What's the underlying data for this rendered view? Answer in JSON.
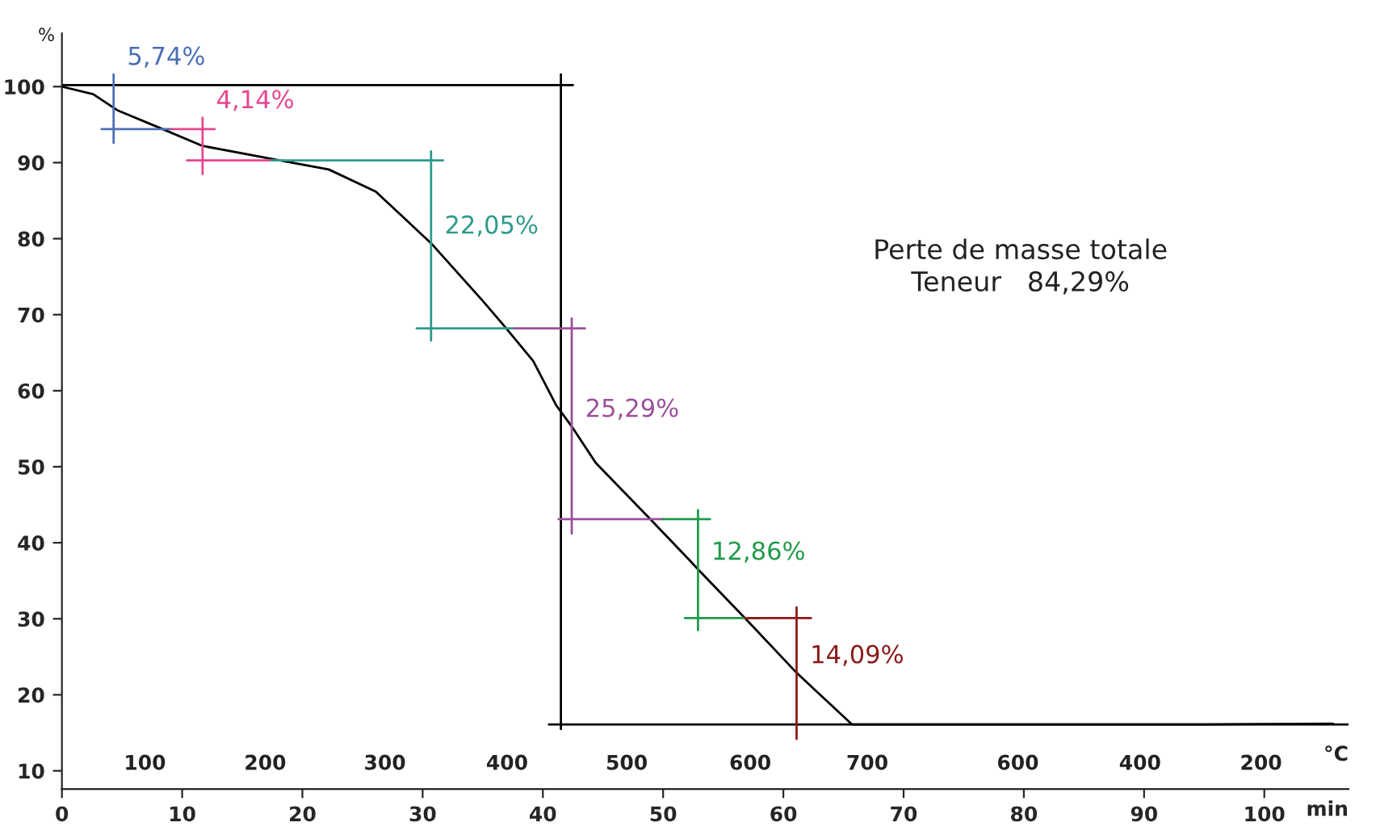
{
  "chart_data": {
    "type": "line",
    "ylabel": "%",
    "xlabel": "min",
    "xlim": [
      0,
      107
    ],
    "ylim": [
      7.6,
      107
    ],
    "xticks": [
      0,
      10,
      20,
      30,
      40,
      50,
      60,
      70,
      80,
      90,
      100
    ],
    "yticks": [
      10,
      20,
      30,
      40,
      50,
      60,
      70,
      80,
      90,
      100
    ],
    "grid": false,
    "marker": "none",
    "line_style": "solid",
    "series": [
      {
        "color": "#000000",
        "x": [
          0,
          2.6,
          4.6,
          8.1,
          11.7,
          17.4,
          22.2,
          26.1,
          30.7,
          34.9,
          36.8,
          39.2,
          41.1,
          42.4,
          44.4,
          48.7,
          52.2,
          52.9,
          56.8,
          61.1,
          65.7,
          80,
          95,
          105.7
        ],
        "values": [
          100,
          99,
          96.9,
          94.6,
          92.2,
          90.5,
          89.1,
          86.2,
          79.4,
          72,
          68.5,
          63.9,
          58.1,
          55.3,
          50.5,
          43.5,
          37.7,
          36.5,
          30.1,
          22.9,
          16.1,
          16.1,
          16.1,
          16.2
        ]
      },
      {
        "color": "#000000",
        "x": [
          0,
          42.5,
          null,
          41.5,
          41.5,
          null,
          40.5,
          107
        ],
        "values": [
          100.2,
          100.2,
          null,
          101.6,
          15.5,
          null,
          16.1,
          16.1
        ]
      },
      {
        "color": "#4a6fb5",
        "x": [
          4.3,
          4.3,
          null,
          3.3,
          9.1
        ],
        "values": [
          101.6,
          92.6,
          null,
          94.4,
          94.4
        ]
      },
      {
        "color": "#e6468f",
        "x": [
          11.7,
          11.7,
          null,
          9.1,
          12.7,
          null,
          10.4,
          18.3
        ],
        "values": [
          95.9,
          88.5,
          null,
          94.4,
          94.4,
          null,
          90.3,
          90.3
        ]
      },
      {
        "color": "#2e9a8c",
        "x": [
          30.7,
          30.7,
          null,
          17.4,
          31.7,
          null,
          29.5,
          37.6
        ],
        "values": [
          91.5,
          66.6,
          null,
          90.3,
          90.3,
          null,
          68.2,
          68.2
        ]
      },
      {
        "color": "#9b4f9c",
        "x": [
          42.4,
          42.4,
          null,
          37.6,
          43.5,
          null,
          41.3,
          50
        ],
        "values": [
          69.5,
          41.2,
          null,
          68.2,
          68.2,
          null,
          43.1,
          43.1
        ]
      },
      {
        "color": "#1f9a4a",
        "x": [
          52.9,
          52.9,
          null,
          50,
          53.9,
          null,
          51.8,
          58.1
        ],
        "values": [
          44.3,
          28.5,
          null,
          43.1,
          43.1,
          null,
          30.1,
          30.1
        ]
      },
      {
        "color": "#8b1a1a",
        "x": [
          61.1,
          61.1,
          null,
          56.8,
          62.3
        ],
        "values": [
          31.5,
          14.2,
          null,
          30.1,
          30.1
        ]
      }
    ],
    "annotations": [
      {
        "text": "5,74%",
        "x": 4.3,
        "y": 101.6
      },
      {
        "text": "4,14%",
        "x": 11.7,
        "y": 95.9
      },
      {
        "text": "22,05%",
        "x": 30.7,
        "y": 79.4
      },
      {
        "text": "25,29%",
        "x": 42.4,
        "y": 55.3
      },
      {
        "text": "12,86%",
        "x": 52.9,
        "y": 36.5
      },
      {
        "text": "14,09%",
        "x": 61.1,
        "y": 22.9
      },
      "100",
      "200",
      "300",
      "400",
      "500",
      "600",
      "700",
      "600",
      "400",
      "200",
      "°C",
      "Perte de masse totale\nTeneur   84,29%"
    ]
  }
}
